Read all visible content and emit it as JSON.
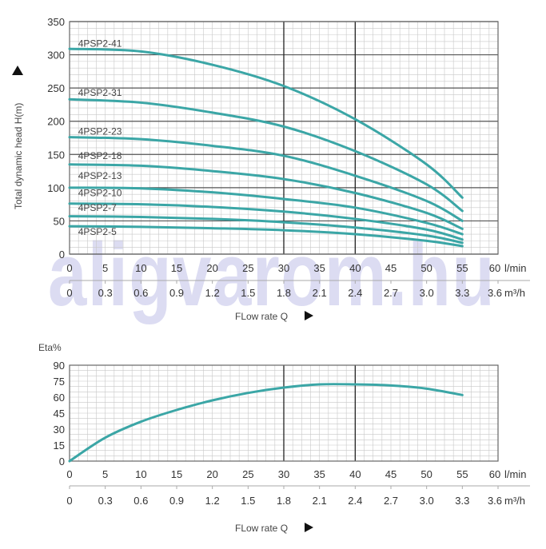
{
  "watermark": "aligvarom.hu",
  "colors": {
    "curve": "#3ba6a6",
    "grid_minor": "#c8c8c8",
    "grid_major": "#222222"
  },
  "chart_data": [
    {
      "type": "line",
      "title": "",
      "ylabel": "Total dynamic head H(m)",
      "xlabel": "FLow rate Q",
      "x_unit": "l/min",
      "x2_unit": "m³/h",
      "xlim": [
        0,
        60
      ],
      "ylim": [
        0,
        350
      ],
      "x_ticks": [
        "0",
        "5",
        "10",
        "15",
        "20",
        "25",
        "30",
        "35",
        "40",
        "45",
        "50",
        "55",
        "60"
      ],
      "x2_ticks": [
        "0",
        "0.3",
        "0.6",
        "0.9",
        "1.2",
        "1.5",
        "1.8",
        "2.1",
        "2.4",
        "2.7",
        "3.0",
        "3.3",
        "3.6"
      ],
      "y_ticks": [
        "0",
        "50",
        "100",
        "150",
        "200",
        "250",
        "300",
        "350"
      ],
      "major_x_lines": [
        30,
        40
      ],
      "grid": true,
      "x": [
        0,
        10,
        20,
        30,
        40,
        50,
        55
      ],
      "series": [
        {
          "name": "4PSP2-41",
          "values": [
            309,
            305,
            285,
            253,
            203,
            135,
            85
          ]
        },
        {
          "name": "4PSP2-31",
          "values": [
            233,
            228,
            213,
            192,
            155,
            105,
            65
          ]
        },
        {
          "name": "4PSP2-23",
          "values": [
            176,
            173,
            163,
            148,
            118,
            80,
            50
          ]
        },
        {
          "name": "4PSP2-18",
          "values": [
            135,
            133,
            125,
            113,
            92,
            62,
            38
          ]
        },
        {
          "name": "4PSP2-13",
          "values": [
            100,
            99,
            93,
            83,
            70,
            47,
            30
          ]
        },
        {
          "name": "4PSP2-10",
          "values": [
            76,
            75,
            71,
            64,
            53,
            37,
            22
          ]
        },
        {
          "name": "4PSP2-7",
          "values": [
            57,
            56,
            53,
            48,
            40,
            28,
            17
          ]
        },
        {
          "name": "4PSP2-5",
          "values": [
            42,
            41,
            39,
            36,
            30,
            20,
            12
          ]
        }
      ],
      "label_values": [
        312,
        238,
        180,
        143,
        113,
        87,
        65,
        29
      ]
    },
    {
      "type": "line",
      "title": "",
      "ylabel": "Eta%",
      "xlabel": "FLow rate Q",
      "x_unit": "l/min",
      "x2_unit": "m³/h",
      "xlim": [
        0,
        60
      ],
      "ylim": [
        0,
        90
      ],
      "x_ticks": [
        "0",
        "5",
        "10",
        "15",
        "20",
        "25",
        "30",
        "35",
        "40",
        "45",
        "50",
        "55",
        "60"
      ],
      "x2_ticks": [
        "0",
        "0.3",
        "0.6",
        "0.9",
        "1.2",
        "1.5",
        "1.8",
        "2.1",
        "2.4",
        "2.7",
        "3.0",
        "3.3",
        "3.6"
      ],
      "y_ticks": [
        "0",
        "15",
        "30",
        "45",
        "60",
        "75",
        "90"
      ],
      "major_x_lines": [
        30,
        40
      ],
      "grid": true,
      "x": [
        0,
        5,
        10,
        15,
        20,
        25,
        30,
        35,
        40,
        45,
        50,
        55
      ],
      "series": [
        {
          "name": "Eta",
          "values": [
            0,
            22,
            37,
            48,
            57,
            64,
            69,
            72,
            72,
            71,
            68,
            62
          ]
        }
      ]
    }
  ]
}
